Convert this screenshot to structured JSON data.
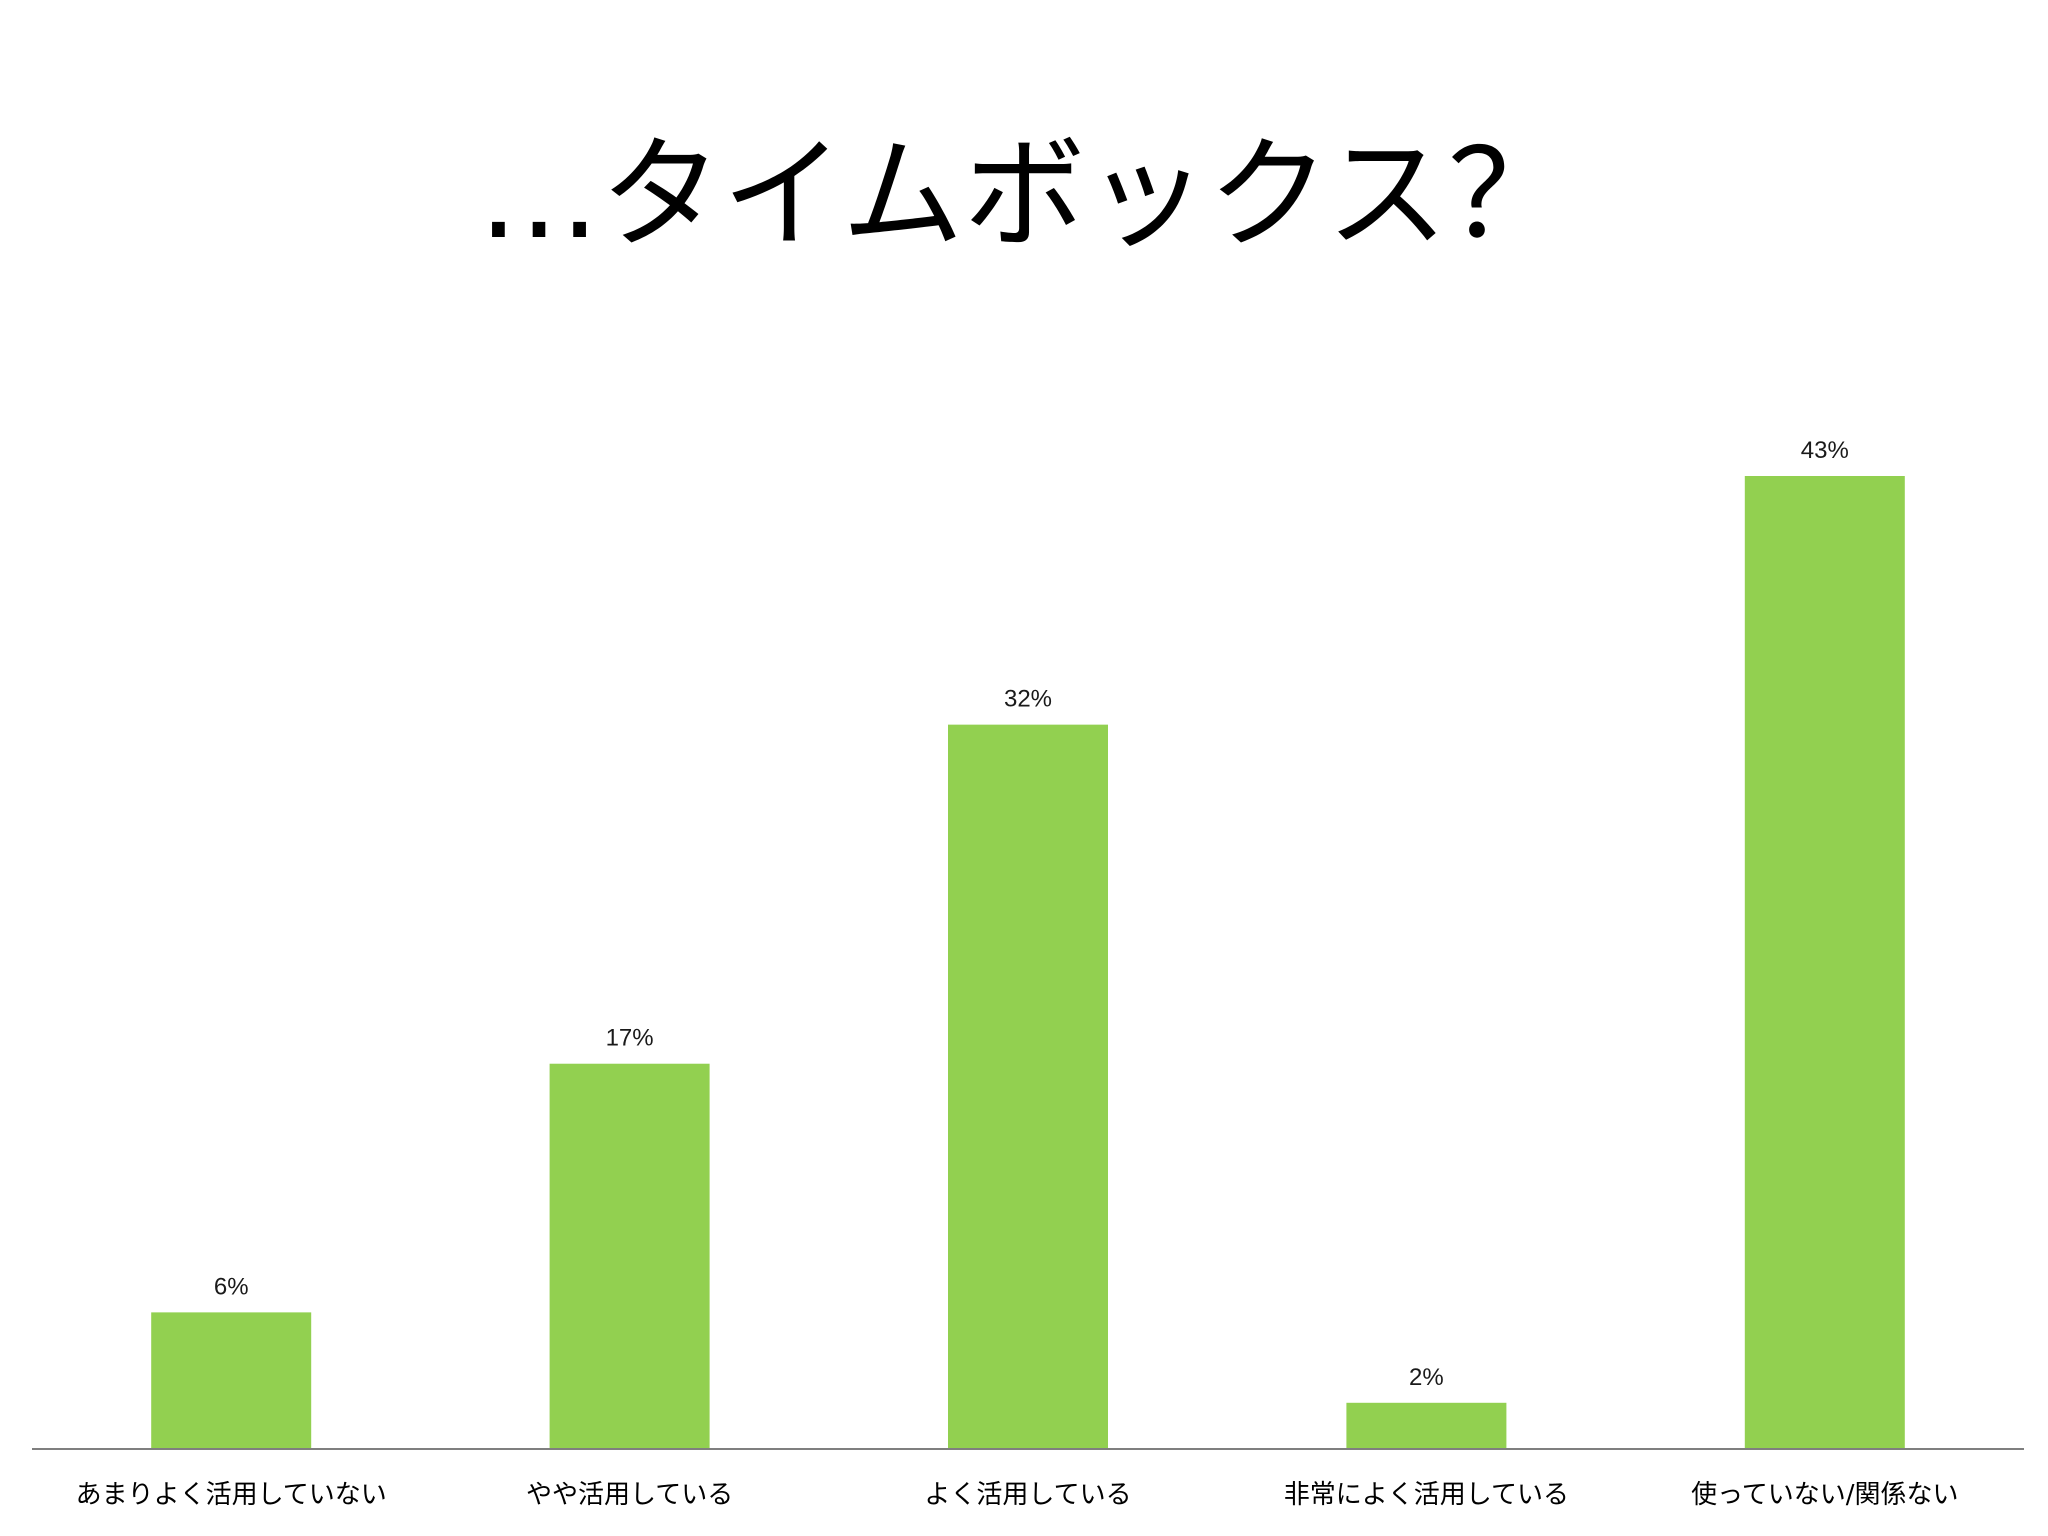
{
  "slide": {
    "title": "…タイムボックス？"
  },
  "colors": {
    "bar": "#92D050",
    "axis": "#7f7f7f",
    "background": "#ffffff"
  },
  "chart_data": {
    "type": "bar",
    "title": "",
    "xlabel": "",
    "ylabel": "",
    "categories": [
      "あまりよく活用していない",
      "やや活用している",
      "よく活用している",
      "非常によく活用している",
      "使っていない/関係ない"
    ],
    "values": [
      6,
      17,
      32,
      2,
      43
    ],
    "value_labels": [
      "6%",
      "17%",
      "32%",
      "2%",
      "43%"
    ],
    "unit": "%",
    "ylim": [
      0,
      43
    ],
    "grid": false,
    "legend": "none"
  }
}
